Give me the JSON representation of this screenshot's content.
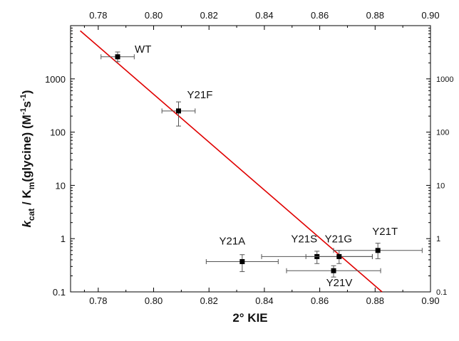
{
  "chart_data": {
    "type": "scatter",
    "title": "",
    "xlabel": "2° KIE",
    "ylabel_parts": {
      "k": "k",
      "cat": "cat",
      "mid": " / K",
      "m": "m",
      "rest": "(glycine) (M",
      "exp1": "-1",
      "s": "s",
      "exp2": "-1",
      "close": ")"
    },
    "xlim": [
      0.77,
      0.9
    ],
    "ylim": [
      0.1,
      10000
    ],
    "yscale": "log",
    "x_ticks": [
      "0.78",
      "0.80",
      "0.82",
      "0.84",
      "0.86",
      "0.88",
      "0.90"
    ],
    "x_tick_values": [
      0.78,
      0.8,
      0.82,
      0.84,
      0.86,
      0.88,
      0.9
    ],
    "y_ticks": [
      "0.1",
      "1",
      "10",
      "100",
      "1000"
    ],
    "y_tick_values": [
      0.1,
      1,
      10,
      100,
      1000
    ],
    "grid": false,
    "series": [
      {
        "points": [
          {
            "label": "WT",
            "x": 0.787,
            "y": 2600,
            "xerr": 0.006,
            "yerr_low": 2100,
            "yerr_high": 3200
          },
          {
            "label": "Y21F",
            "x": 0.809,
            "y": 250,
            "xerr": 0.006,
            "yerr_low": 130,
            "yerr_high": 370
          },
          {
            "label": "Y21A",
            "x": 0.832,
            "y": 0.37,
            "xerr": 0.013,
            "yerr_low": 0.24,
            "yerr_high": 0.5
          },
          {
            "label": "Y21S",
            "x": 0.859,
            "y": 0.46,
            "xerr": 0.02,
            "yerr_low": 0.34,
            "yerr_high": 0.58
          },
          {
            "label": "Y21V",
            "x": 0.865,
            "y": 0.25,
            "xerr": 0.017,
            "yerr_low": 0.19,
            "yerr_high": 0.31
          },
          {
            "label": "Y21G",
            "x": 0.867,
            "y": 0.46,
            "xerr": 0.012,
            "yerr_low": 0.34,
            "yerr_high": 0.6
          },
          {
            "label": "Y21T",
            "x": 0.881,
            "y": 0.6,
            "xerr": 0.016,
            "yerr_low": 0.42,
            "yerr_high": 0.82
          }
        ]
      }
    ],
    "fit_line": {
      "color": "#e00000",
      "x": [
        0.7735,
        0.8825
      ],
      "y": [
        8000,
        0.1
      ]
    },
    "marker_color": "#000000",
    "errorbar_color": "#555555"
  }
}
